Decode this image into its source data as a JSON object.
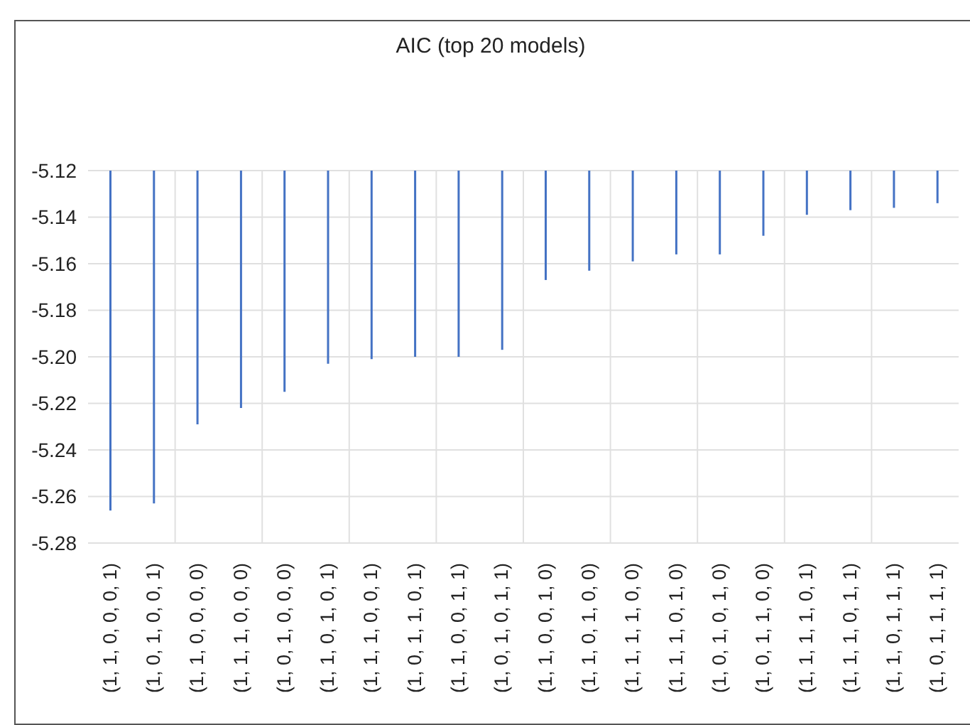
{
  "chart_data": {
    "type": "bar",
    "title": "AIC (top 20 models)",
    "categories": [
      "(1, 1, 0, 0, 0, 1)",
      "(1, 0, 1, 0, 0, 1)",
      "(1, 1, 0, 0, 0, 0)",
      "(1, 1, 1, 0, 0, 0)",
      "(1, 0, 1, 0, 0, 0)",
      "(1, 1, 0, 1, 0, 1)",
      "(1, 1, 1, 0, 0, 1)",
      "(1, 0, 1, 1, 0, 1)",
      "(1, 1, 0, 0, 1, 1)",
      "(1, 0, 1, 0, 1, 1)",
      "(1, 1, 0, 0, 1, 0)",
      "(1, 1, 0, 1, 0, 0)",
      "(1, 1, 1, 1, 0, 0)",
      "(1, 1, 1, 0, 1, 0)",
      "(1, 0, 1, 0, 1, 0)",
      "(1, 0, 1, 1, 0, 0)",
      "(1, 1, 1, 1, 0, 1)",
      "(1, 1, 1, 0, 1, 1)",
      "(1, 1, 0, 1, 1, 1)",
      "(1, 0, 1, 1, 1, 1)"
    ],
    "values": [
      -5.266,
      -5.263,
      -5.229,
      -5.222,
      -5.215,
      -5.203,
      -5.201,
      -5.2,
      -5.2,
      -5.197,
      -5.167,
      -5.163,
      -5.159,
      -5.156,
      -5.156,
      -5.148,
      -5.139,
      -5.137,
      -5.136,
      -5.134
    ],
    "color": "#4472c4",
    "ylim": [
      -5.28,
      -5.12
    ],
    "yticks": [
      -5.28,
      -5.26,
      -5.24,
      -5.22,
      {
        "value": -5.2,
        "label": "-5.20"
      },
      -5.18,
      -5.16,
      -5.14,
      -5.12
    ],
    "grid": true
  }
}
